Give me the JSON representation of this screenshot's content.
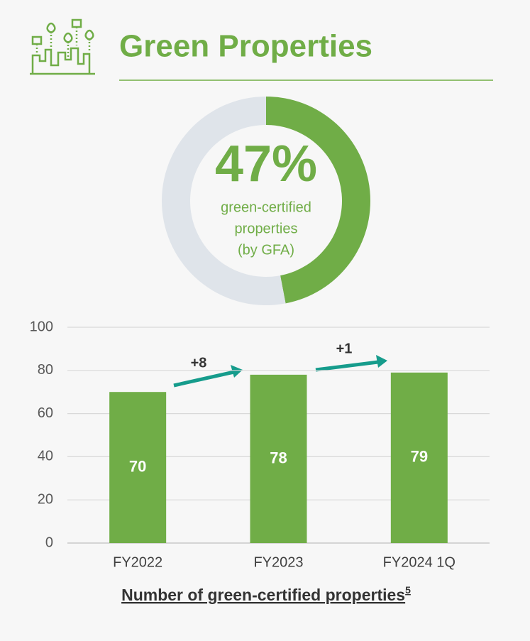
{
  "header": {
    "title": "Green Properties"
  },
  "chart_data": [
    {
      "type": "donut",
      "values": [
        47,
        53
      ],
      "value_labels": [
        "47%",
        null
      ],
      "colors": [
        "#70ad47",
        "#dfe4ea"
      ],
      "caption_lines": [
        "green-certified",
        "properties",
        "(by GFA)"
      ]
    },
    {
      "type": "bar",
      "title": "Number of green-certified properties",
      "footnote": "5",
      "categories": [
        "FY2022",
        "FY2023",
        "FY2024 1Q"
      ],
      "values": [
        70,
        78,
        79
      ],
      "color": "#70ad47",
      "ylim": [
        0,
        100
      ],
      "yticks": [
        0,
        20,
        40,
        60,
        80,
        100
      ],
      "grid": true,
      "annotations": [
        {
          "text": "+8"
        },
        {
          "text": "+1"
        }
      ]
    }
  ]
}
